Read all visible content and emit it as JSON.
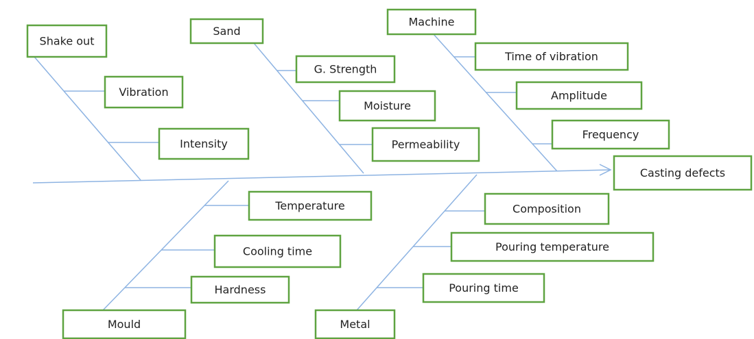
{
  "effect": "Casting defects",
  "categories": [
    {
      "label": "Shake out",
      "causes": [
        "Vibration",
        "Intensity"
      ]
    },
    {
      "label": "Sand",
      "causes": [
        "G. Strength",
        "Moisture",
        "Permeability"
      ]
    },
    {
      "label": "Machine",
      "causes": [
        "Time of vibration",
        "Amplitude",
        "Frequency"
      ]
    },
    {
      "label": "Mould",
      "causes": [
        "Temperature",
        "Cooling time",
        "Hardness"
      ]
    },
    {
      "label": "Metal",
      "causes": [
        "Composition",
        "Pouring temperature",
        "Pouring time"
      ]
    }
  ]
}
